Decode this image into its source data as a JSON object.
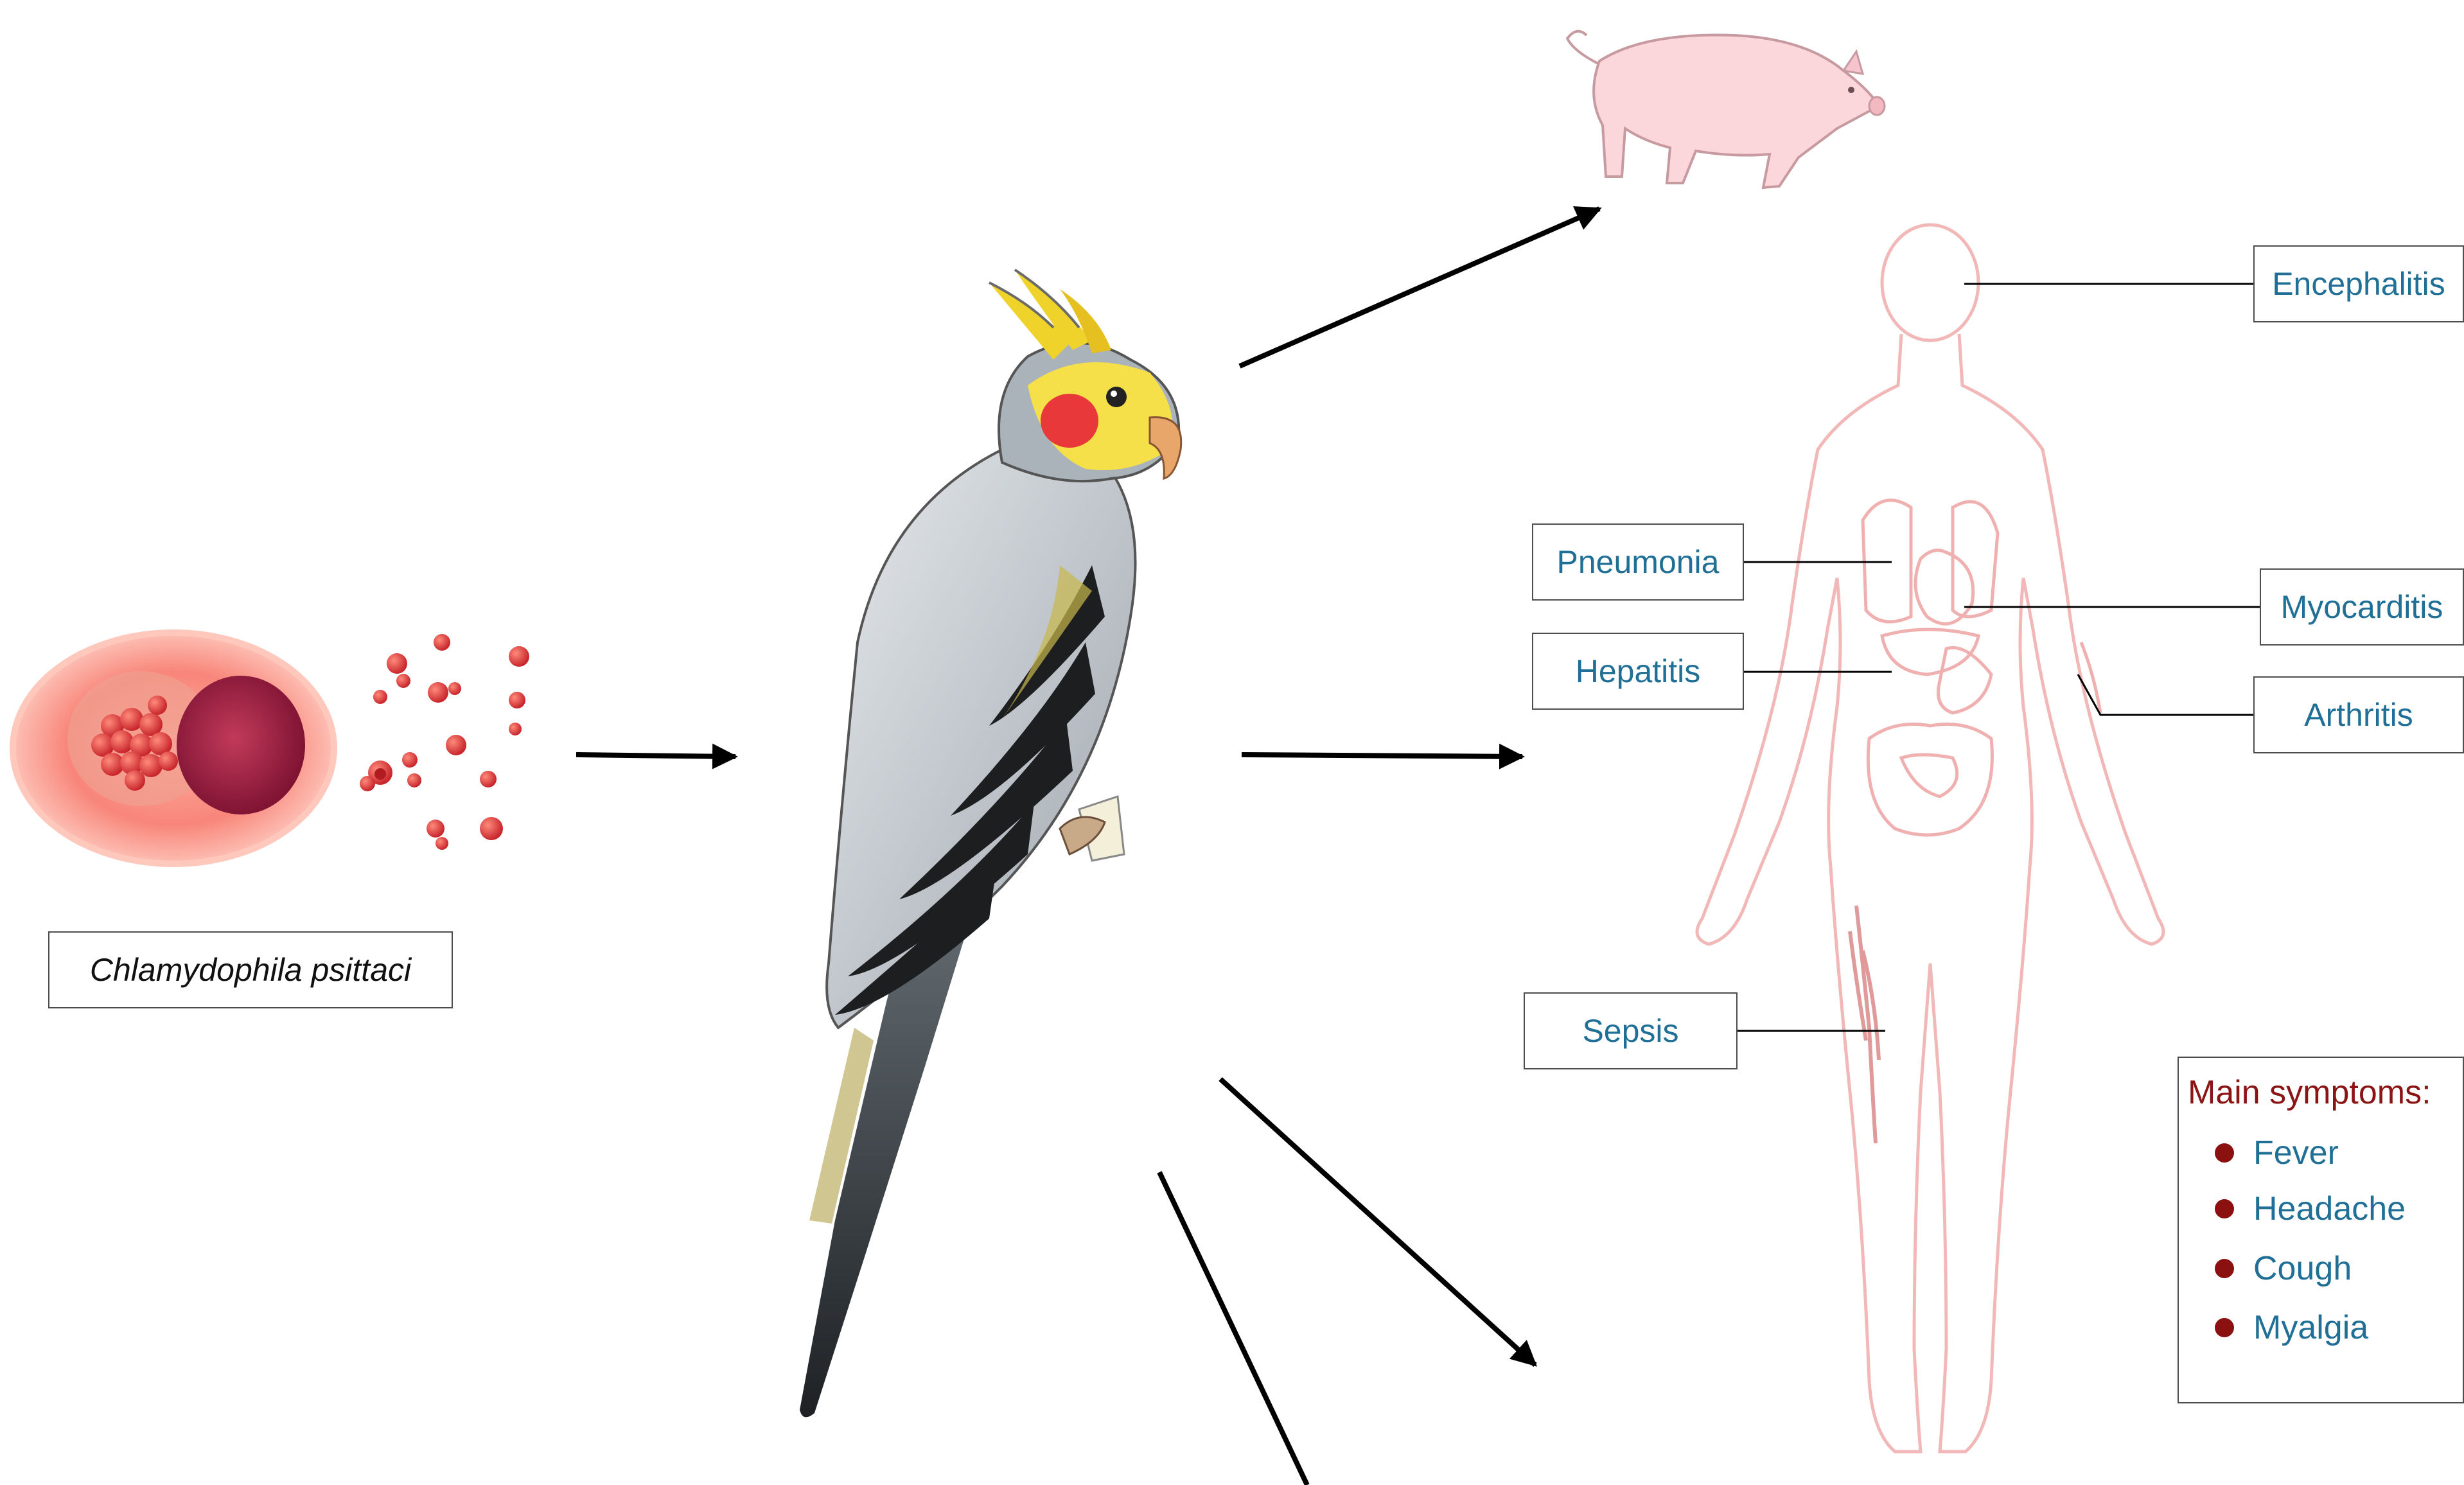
{
  "pathogen_label": "Chlamydophila psittaci",
  "organ_labels": {
    "encephalitis": "Encephalitis",
    "pneumonia": "Pneumonia",
    "myocarditis": "Myocarditis",
    "hepatitis": "Hepatitis",
    "arthritis": "Arthritis",
    "sepsis": "Sepsis"
  },
  "symptoms": {
    "title": "Main symptoms:",
    "items": [
      "Fever",
      "Headache",
      "Cough",
      "Myalgia"
    ]
  },
  "colors": {
    "label_text": "#1f6f96",
    "symptom_title": "#8b1414",
    "symptom_bullet": "#8b1010",
    "body_outline": "#f2b8b8",
    "arrow": "#000000"
  }
}
